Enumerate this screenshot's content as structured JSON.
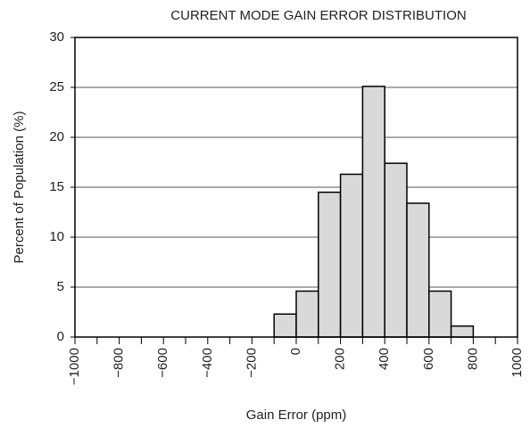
{
  "chart_data": {
    "type": "histogram",
    "title": "CURRENT MODE GAIN ERROR DISTRIBUTION",
    "x_label": "Gain Error (ppm)",
    "y_label": "Percent of Population (%)",
    "bins": [
      -100,
      0,
      100,
      200,
      300,
      400,
      500,
      600,
      700,
      800
    ],
    "values": [
      2.3,
      4.6,
      14.5,
      16.3,
      25.1,
      17.4,
      13.4,
      4.6,
      1.1
    ],
    "color": "#d9d9d9",
    "xlim": [
      -1000,
      1000
    ],
    "xticks": [
      {
        "value": -1000,
        "label": "−1000"
      },
      {
        "value": -800,
        "label": "−800"
      },
      {
        "value": -600,
        "label": "−600"
      },
      {
        "value": -400,
        "label": "−400"
      },
      {
        "value": -200,
        "label": "−200"
      },
      0,
      200,
      400,
      600,
      800,
      1000
    ],
    "xminor_ticks": [
      -900,
      -700,
      -500,
      -300,
      -100,
      100,
      300,
      500,
      700,
      900
    ],
    "ylim": [
      0,
      30
    ],
    "yticks": [
      0,
      5,
      10,
      15,
      20,
      25,
      30
    ],
    "grid": true
  }
}
